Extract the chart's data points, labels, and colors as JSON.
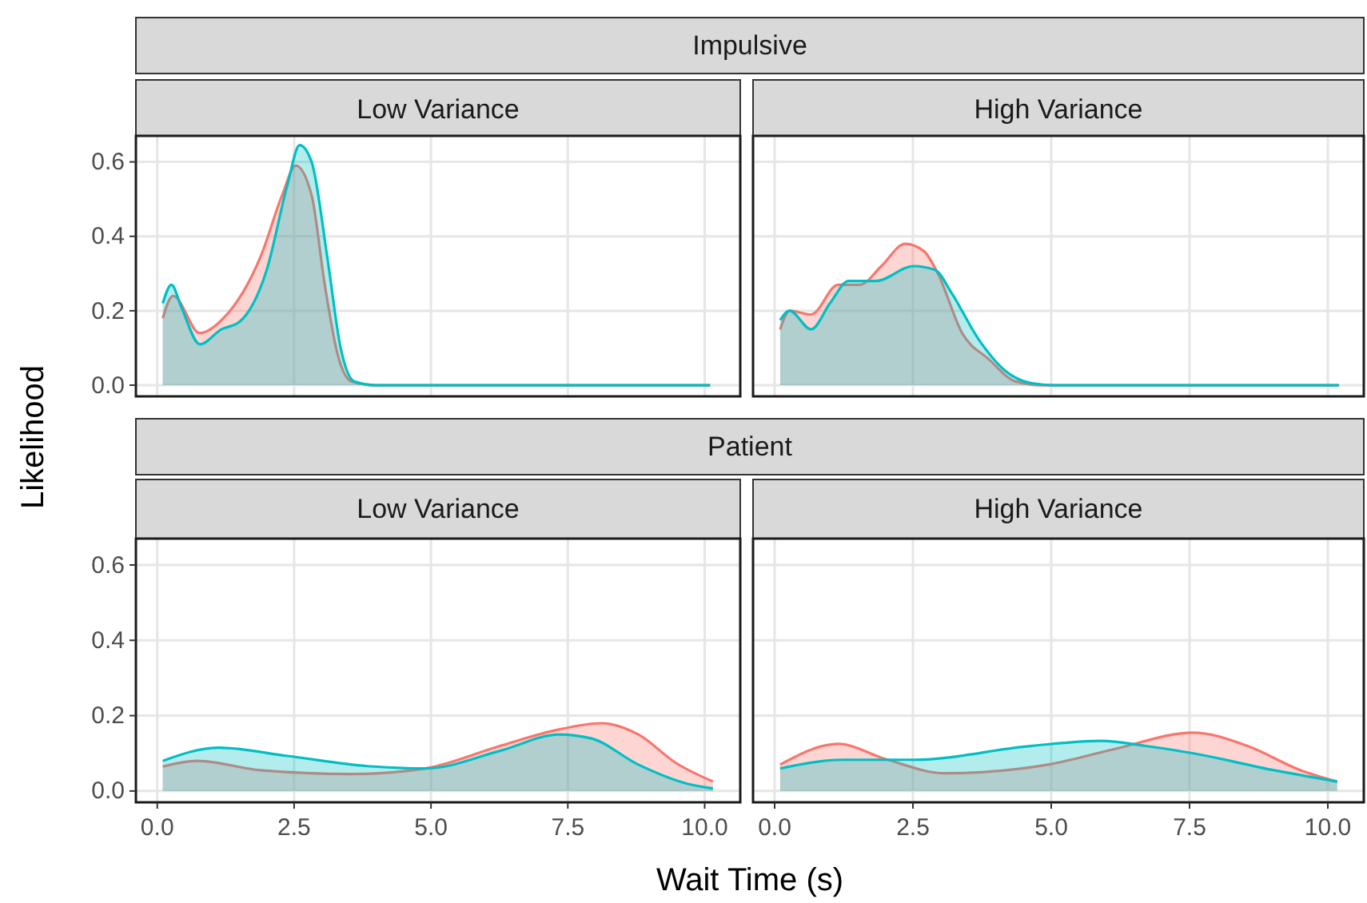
{
  "chart_data": [
    {
      "type": "area",
      "title": "Impulsive",
      "subtitle": "Low Variance",
      "ylabel": "Likelihood",
      "xlim": [
        -0.39,
        10.65
      ],
      "ylim": [
        -0.03,
        0.67
      ],
      "xticks": [
        0,
        2.5,
        5,
        7.5,
        10
      ],
      "yticks": [
        {
          "value": 0,
          "label": "0.0"
        },
        0.2,
        0.4,
        0.6
      ],
      "grid": true,
      "tick_labels": "y",
      "series": [
        {
          "color": "#f8766d",
          "x": [
            0.1,
            0.29,
            0.78,
            1.21,
            1.9,
            2.28,
            2.53,
            2.82,
            3.06,
            3.3,
            3.55,
            4.0,
            10.1
          ],
          "values": [
            0.18,
            0.24,
            0.14,
            0.18,
            0.35,
            0.51,
            0.59,
            0.51,
            0.27,
            0.08,
            0.01,
            0,
            0
          ]
        },
        {
          "color": "#00bfc4",
          "x": [
            0.1,
            0.26,
            0.44,
            0.78,
            1.17,
            1.5,
            2.0,
            2.38,
            2.6,
            2.82,
            3.11,
            3.35,
            3.6,
            4.0,
            10.1
          ],
          "values": [
            0.22,
            0.27,
            0.21,
            0.11,
            0.15,
            0.17,
            0.31,
            0.54,
            0.645,
            0.6,
            0.34,
            0.1,
            0.01,
            0,
            0
          ]
        }
      ]
    },
    {
      "type": "area",
      "subtitle": "High Variance",
      "xlim": [
        -0.39,
        10.65
      ],
      "ylim": [
        -0.03,
        0.67
      ],
      "xticks": [
        0,
        2.5,
        5,
        7.5,
        10
      ],
      "yticks": [
        0,
        0.2,
        0.4,
        0.6
      ],
      "grid": true,
      "tick_labels": false,
      "series": [
        {
          "color": "#f8766d",
          "x": [
            0.1,
            0.27,
            0.66,
            1.15,
            1.54,
            1.93,
            2.36,
            2.7,
            2.95,
            3.39,
            3.87,
            4.36,
            4.84,
            10.2
          ],
          "values": [
            0.15,
            0.2,
            0.19,
            0.27,
            0.27,
            0.32,
            0.38,
            0.36,
            0.3,
            0.14,
            0.07,
            0.01,
            0,
            0
          ]
        },
        {
          "color": "#00bfc4",
          "x": [
            0.1,
            0.27,
            0.66,
            1.0,
            1.34,
            1.83,
            2.51,
            2.9,
            3.19,
            3.68,
            4.16,
            4.65,
            5.04,
            10.2
          ],
          "values": [
            0.175,
            0.2,
            0.15,
            0.22,
            0.28,
            0.28,
            0.32,
            0.31,
            0.25,
            0.125,
            0.04,
            0.005,
            0,
            0
          ]
        }
      ]
    },
    {
      "type": "area",
      "title": "Patient",
      "subtitle": "Low Variance",
      "xlabel": "Wait Time (s)",
      "xlim": [
        -0.39,
        10.65
      ],
      "ylim": [
        -0.03,
        0.67
      ],
      "xticks": [
        {
          "value": 0,
          "label": "0.0"
        },
        2.5,
        {
          "value": 5,
          "label": "5.0"
        },
        7.5,
        {
          "value": 10,
          "label": "10.0"
        }
      ],
      "yticks": [
        {
          "value": 0,
          "label": "0.0"
        },
        0.2,
        0.4,
        0.6
      ],
      "grid": true,
      "series": [
        {
          "color": "#f8766d",
          "x": [
            0.1,
            0.73,
            1.89,
            3.55,
            4.9,
            6.27,
            7.24,
            8.11,
            8.79,
            9.47,
            10.15
          ],
          "values": [
            0.065,
            0.08,
            0.055,
            0.045,
            0.06,
            0.12,
            0.16,
            0.18,
            0.15,
            0.075,
            0.025
          ]
        },
        {
          "color": "#00bfc4",
          "x": [
            0.1,
            1.12,
            2.38,
            3.84,
            4.9,
            6.27,
            7.34,
            7.92,
            8.79,
            9.67,
            10.15
          ],
          "values": [
            0.08,
            0.115,
            0.093,
            0.066,
            0.06,
            0.107,
            0.15,
            0.14,
            0.07,
            0.02,
            0.007
          ]
        }
      ]
    },
    {
      "type": "area",
      "subtitle": "High Variance",
      "xlim": [
        -0.39,
        10.65
      ],
      "ylim": [
        -0.03,
        0.67
      ],
      "xticks": [
        {
          "value": 0,
          "label": "0.0"
        },
        2.5,
        {
          "value": 5,
          "label": "5.0"
        },
        7.5,
        {
          "value": 10,
          "label": "10.0"
        }
      ],
      "yticks": [
        0,
        0.2,
        0.4,
        0.6
      ],
      "grid": true,
      "tick_labels": "x",
      "series": [
        {
          "color": "#f8766d",
          "x": [
            0.1,
            1.15,
            2.0,
            3.09,
            4.94,
            6.11,
            7.57,
            8.54,
            9.51,
            10.17
          ],
          "values": [
            0.07,
            0.125,
            0.085,
            0.047,
            0.07,
            0.11,
            0.155,
            0.12,
            0.055,
            0.025
          ]
        },
        {
          "color": "#00bfc4",
          "x": [
            0.1,
            1.25,
            2.51,
            4.65,
            5.91,
            6.69,
            7.57,
            9.03,
            10.17
          ],
          "values": [
            0.06,
            0.083,
            0.083,
            0.12,
            0.133,
            0.12,
            0.1,
            0.055,
            0.025
          ]
        }
      ]
    }
  ]
}
